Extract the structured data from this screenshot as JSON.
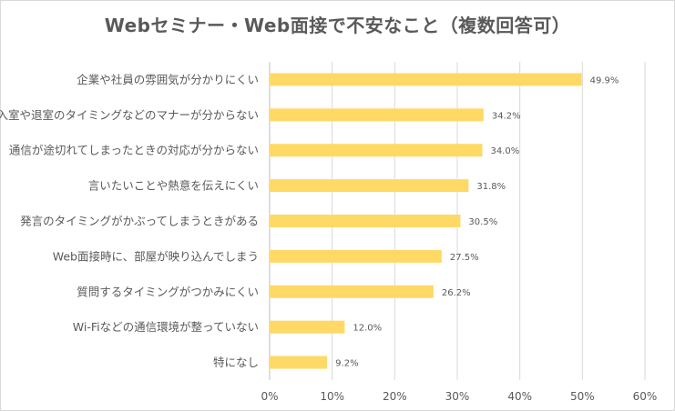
{
  "chart_data": {
    "type": "bar",
    "orientation": "horizontal",
    "title": "Webセミナー・Web面接で不安なこと（複数回答可）",
    "categories": [
      "企業や社員の雰囲気が分かりにくい",
      "入室や退室のタイミングなどのマナーが分からない",
      "通信が途切れてしまったときの対応が分からない",
      "言いたいことや熱意を伝えにくい",
      "発言のタイミングがかぶってしまうときがある",
      "Web面接時に、部屋が映り込んでしまう",
      "質問するタイミングがつかみにくい",
      "Wi-Fiなどの通信環境が整っていない",
      "特になし"
    ],
    "values": [
      49.9,
      34.2,
      34.0,
      31.8,
      30.5,
      27.5,
      26.2,
      12.0,
      9.2
    ],
    "value_labels": [
      "49.9%",
      "34.2%",
      "34.0%",
      "31.8%",
      "30.5%",
      "27.5%",
      "26.2%",
      "12.0%",
      "9.2%"
    ],
    "xlim": [
      0,
      60
    ],
    "x_ticks": [
      "0%",
      "10%",
      "20%",
      "30%",
      "40%",
      "50%",
      "60%"
    ],
    "bar_color": "#FFD966",
    "grid": true,
    "legend": "none"
  }
}
